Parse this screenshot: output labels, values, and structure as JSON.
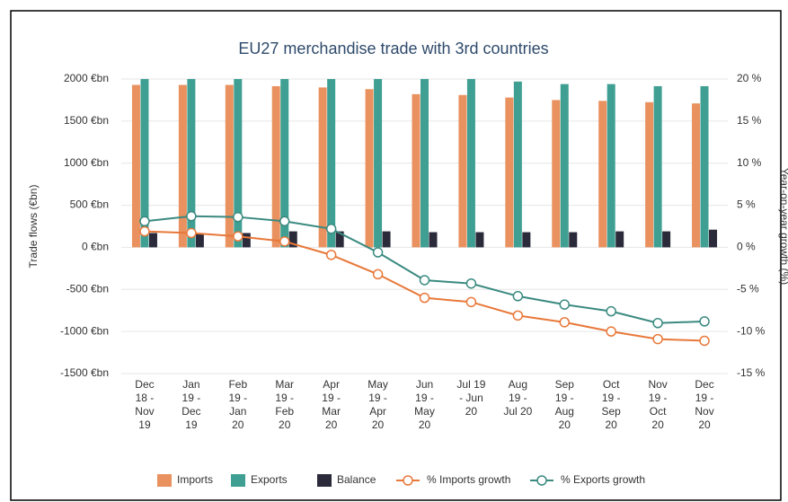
{
  "chart_data": {
    "type": "bar",
    "title": "EU27 merchandise trade with 3rd countries",
    "y_label": "Trade flows (€bn)",
    "y2_label": "Year-on-year growth (%)",
    "categories": [
      "Dec 18 - Nov 19",
      "Jan 19 - Dec 19",
      "Feb 19 - Jan 20",
      "Mar 19 - Feb 20",
      "Apr 19 - Mar 20",
      "May 19 - Apr 20",
      "Jun 19 - May 20",
      "Jul 19 - Jun 20",
      "Aug 19 - Jul 20",
      "Sep 19 - Aug 20",
      "Oct 19 - Sep 20",
      "Nov 19 - Oct 20",
      "Dec 19 - Nov 20"
    ],
    "series": [
      {
        "name": "Imports",
        "type": "bar",
        "color": "#e9915f",
        "values": [
          1930,
          1930,
          1930,
          1915,
          1900,
          1880,
          1820,
          1810,
          1780,
          1750,
          1740,
          1725,
          1710
        ]
      },
      {
        "name": "Exports",
        "type": "bar",
        "color": "#3f9f92",
        "values": [
          2000,
          2000,
          2000,
          2000,
          2000,
          2000,
          2000,
          2000,
          1970,
          1940,
          1940,
          1915,
          1915
        ]
      },
      {
        "name": "Balance",
        "type": "bar",
        "color": "#2a2a3a",
        "values": [
          170,
          170,
          170,
          190,
          190,
          190,
          180,
          180,
          180,
          180,
          190,
          190,
          210
        ]
      },
      {
        "name": "% Imports growth",
        "type": "line",
        "axis": "y2",
        "color": "#e8783a",
        "values": [
          1.9,
          1.7,
          1.3,
          0.7,
          -0.9,
          -3.2,
          -6.0,
          -6.5,
          -8.1,
          -8.9,
          -10.0,
          -10.9,
          -11.1
        ]
      },
      {
        "name": "% Exports growth",
        "type": "line",
        "axis": "y2",
        "color": "#3a8a80",
        "values": [
          3.1,
          3.7,
          3.6,
          3.1,
          2.2,
          -0.6,
          -3.9,
          -4.3,
          -5.8,
          -6.8,
          -7.6,
          -9.0,
          -8.8
        ]
      }
    ],
    "ylim": [
      -1500,
      2000
    ],
    "yticks": [
      {
        "value": -1500,
        "label": "-1500 €bn"
      },
      {
        "value": -1000,
        "label": "-1000 €bn"
      },
      {
        "value": -500,
        "label": "-500 €bn"
      },
      {
        "value": 0,
        "label": "0 €bn"
      },
      {
        "value": 500,
        "label": "500 €bn"
      },
      {
        "value": 1000,
        "label": "1000 €bn"
      },
      {
        "value": 1500,
        "label": "1500 €bn"
      },
      {
        "value": 2000,
        "label": "2000 €bn"
      }
    ],
    "y2lim": [
      -15,
      20
    ],
    "y2ticks": [
      {
        "value": -15,
        "label": "-15 %"
      },
      {
        "value": -10,
        "label": "-10 %"
      },
      {
        "value": -5,
        "label": "-5 %"
      },
      {
        "value": 0,
        "label": "0 %"
      },
      {
        "value": 5,
        "label": "5 %"
      },
      {
        "value": 10,
        "label": "10 %"
      },
      {
        "value": 15,
        "label": "15 %"
      },
      {
        "value": 20,
        "label": "20 %"
      }
    ],
    "grid": true,
    "legend": "bottom"
  }
}
